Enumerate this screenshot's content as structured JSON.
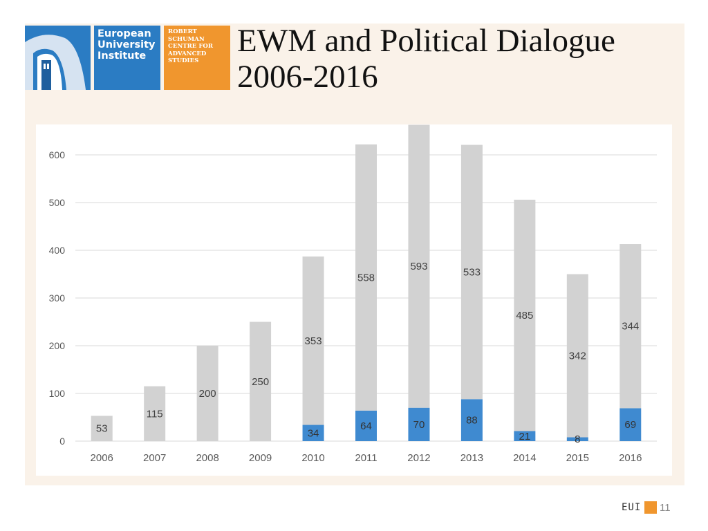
{
  "slide": {
    "title": "EWM and Political Dialogue\n2006-2016",
    "logos": {
      "eui_text": "European\nUniversity\nInstitute",
      "rsc_text": "ROBERT\nSCHUMAN\nCENTRE FOR\nADVANCED\nSTUDIES"
    },
    "footer": {
      "brand": "EUI",
      "page_number": "11"
    }
  },
  "colors": {
    "grey_bar": "#d2d2d2",
    "blue_bar": "#3f8ad0",
    "panel": "#faf2e9",
    "eui_blue": "#2b7cc3",
    "rsc_orange": "#f0962e"
  },
  "chart_data": {
    "type": "bar",
    "stacked": true,
    "title": "",
    "xlabel": "",
    "ylabel": "",
    "ylim": [
      0,
      660
    ],
    "yticks": [
      0,
      100,
      200,
      300,
      400,
      500,
      600
    ],
    "grid": true,
    "categories": [
      "2006",
      "2007",
      "2008",
      "2009",
      "2010",
      "2011",
      "2012",
      "2013",
      "2014",
      "2015",
      "2016"
    ],
    "series": [
      {
        "name": "Political Dialogue",
        "color": "#3f8ad0",
        "values": [
          0,
          0,
          0,
          0,
          34,
          64,
          70,
          88,
          21,
          8,
          69
        ]
      },
      {
        "name": "EWM",
        "color": "#d2d2d2",
        "values": [
          53,
          115,
          200,
          250,
          353,
          558,
          593,
          533,
          485,
          342,
          344
        ]
      }
    ]
  }
}
